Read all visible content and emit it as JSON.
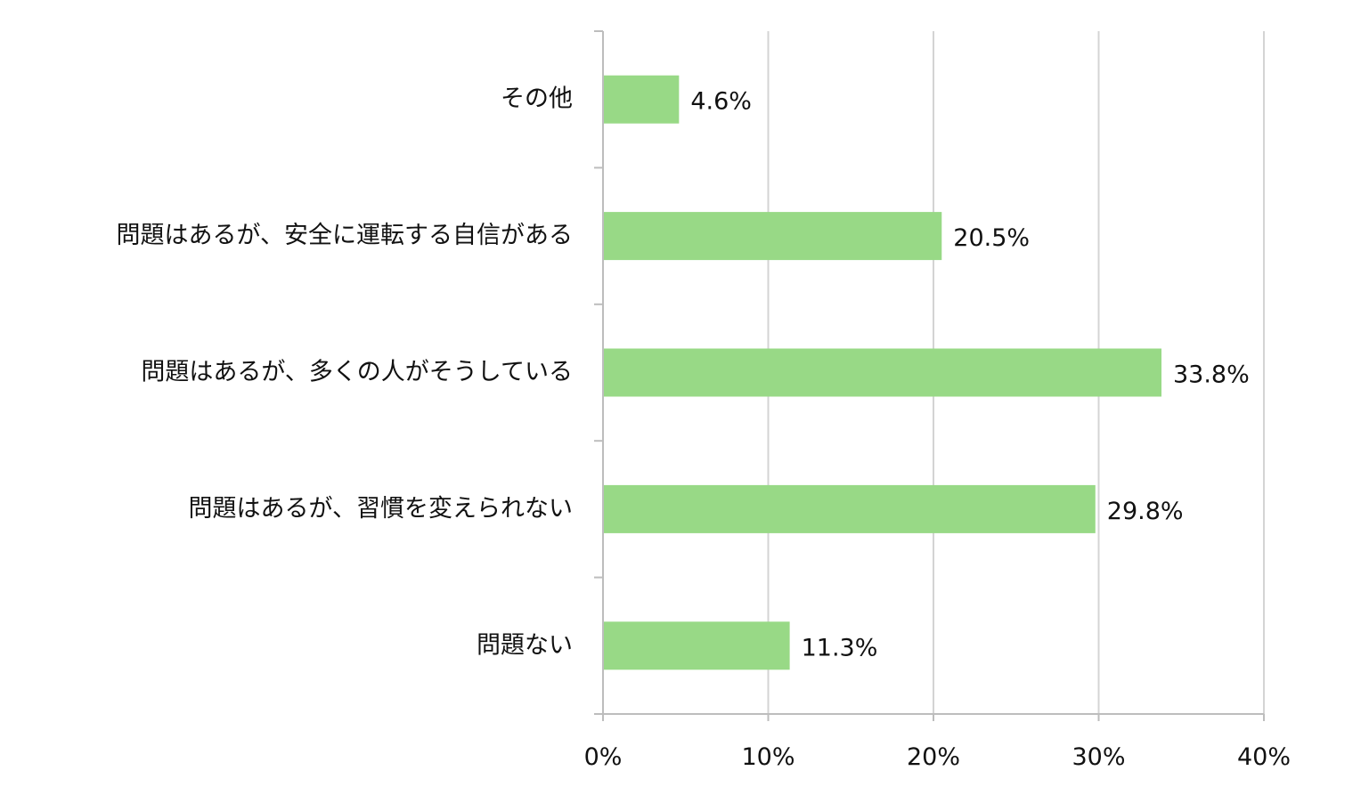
{
  "chart_data": {
    "type": "bar",
    "orientation": "horizontal",
    "categories": [
      "その他",
      "問題はあるが、安全に運転する自信がある",
      "問題はあるが、多くの人がそうしている",
      "問題はあるが、習慣を変えられない",
      "問題ない"
    ],
    "values": [
      4.6,
      20.5,
      33.8,
      29.8,
      11.3
    ],
    "value_labels": [
      "4.6%",
      "20.5%",
      "33.8%",
      "29.8%",
      "11.3%"
    ],
    "x_ticks": [
      0,
      10,
      20,
      30,
      40
    ],
    "x_tick_labels": [
      "0%",
      "10%",
      "20%",
      "30%",
      "40%"
    ],
    "xlim": [
      0,
      40
    ],
    "grid": true,
    "legend": "none",
    "bar_color": "#98d986",
    "title": "",
    "xlabel": "",
    "ylabel": ""
  }
}
